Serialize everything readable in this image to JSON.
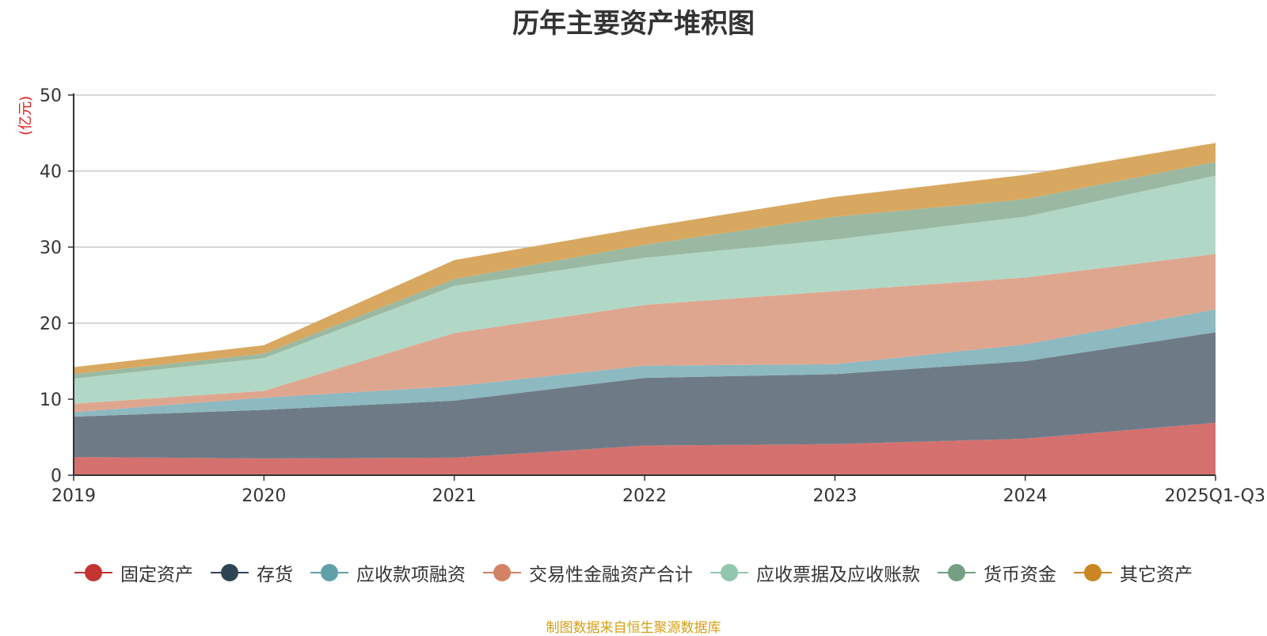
{
  "chart_data": {
    "type": "area",
    "stacked": true,
    "title": "历年主要资产堆积图",
    "ylabel": "(亿元)",
    "xlabel": "",
    "ylim": [
      0,
      50
    ],
    "yticks": [
      0,
      10,
      20,
      30,
      40,
      50
    ],
    "categories": [
      "2019",
      "2020",
      "2021",
      "2022",
      "2023",
      "2024",
      "2025Q1-Q3"
    ],
    "grid": true,
    "legend_position": "bottom",
    "series": [
      {
        "name": "固定资产",
        "color": "#c23531",
        "fill": "#d4716e",
        "values": [
          2.4,
          2.2,
          2.3,
          3.9,
          4.1,
          4.8,
          6.9
        ]
      },
      {
        "name": "存货",
        "color": "#2f4554",
        "fill": "#6e7b87",
        "values": [
          5.3,
          6.4,
          7.5,
          8.9,
          9.2,
          10.2,
          11.9
        ]
      },
      {
        "name": "应收款项融资",
        "color": "#61a0a8",
        "fill": "#8db9c0",
        "values": [
          0.6,
          1.6,
          1.9,
          1.6,
          1.3,
          2.2,
          3.0
        ]
      },
      {
        "name": "交易性金融资产合计",
        "color": "#d48265",
        "fill": "#dfa68f",
        "values": [
          1.1,
          0.9,
          7.0,
          8.0,
          9.6,
          8.8,
          7.3
        ]
      },
      {
        "name": "应收票据及应收账款",
        "color": "#91c7ae",
        "fill": "#b1d8c6",
        "values": [
          3.3,
          4.3,
          6.2,
          6.2,
          6.8,
          8.0,
          10.3
        ]
      },
      {
        "name": "货币资金",
        "color": "#749f83",
        "fill": "#9bb9a2",
        "values": [
          0.6,
          0.6,
          0.9,
          1.7,
          3.0,
          2.3,
          1.8
        ]
      },
      {
        "name": "其它资产",
        "color": "#ca8622",
        "fill": "#d8a860",
        "values": [
          0.9,
          1.1,
          2.5,
          2.3,
          2.6,
          3.2,
          2.5
        ]
      }
    ]
  },
  "source_note": "制图数据来自恒生聚源数据库"
}
